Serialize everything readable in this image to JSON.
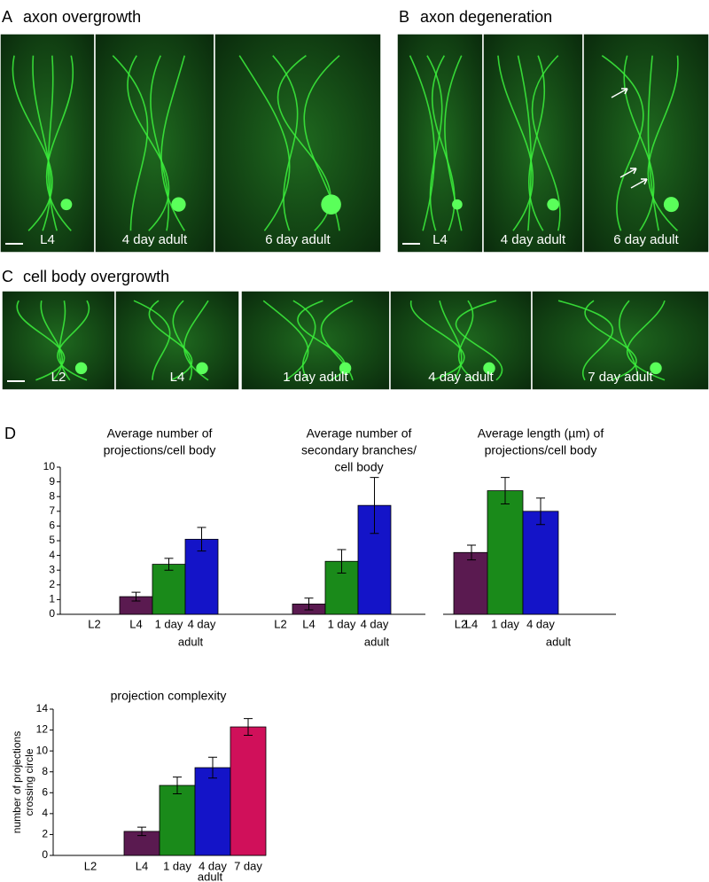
{
  "panels": [
    {
      "letter": "A",
      "title": "axon overgrowth",
      "images": [
        "L4",
        "4 day adult",
        "6 day adult"
      ]
    },
    {
      "letter": "B",
      "title": "axon degeneration",
      "images": [
        "L4",
        "4 day adult",
        "6 day adult"
      ]
    },
    {
      "letter": "C",
      "title": "cell body overgrowth",
      "images": [
        "L2",
        "L4",
        "1 day adult",
        "4 day adult",
        "7 day adult"
      ]
    }
  ],
  "panel_d": "D",
  "chart_data": [
    {
      "type": "bar",
      "title": [
        "Average number of",
        "projections/cell body"
      ],
      "categories": [
        "L2",
        "L4",
        "1 day",
        "4 day"
      ],
      "category_group": "adult",
      "values": [
        null,
        1.2,
        3.4,
        5.1
      ],
      "errors": [
        null,
        0.3,
        0.4,
        0.8
      ],
      "colors": [
        "#5a1a50",
        "#1a8a1a",
        "#1414c8"
      ],
      "ylim": [
        0,
        10
      ],
      "yticks": [
        0,
        1,
        2,
        3,
        4,
        5,
        6,
        7,
        8,
        9,
        10
      ]
    },
    {
      "type": "bar",
      "title": [
        "Average number of",
        "secondary branches/",
        "cell body"
      ],
      "categories": [
        "L2",
        "L4",
        "1 day",
        "4 day"
      ],
      "category_group": "adult",
      "values": [
        null,
        0.7,
        3.6,
        7.4
      ],
      "errors": [
        null,
        0.4,
        0.8,
        1.9
      ],
      "colors": [
        "#5a1a50",
        "#1a8a1a",
        "#1414c8"
      ],
      "ylim": [
        0,
        10
      ]
    },
    {
      "type": "bar",
      "title": [
        "Average length (µm) of",
        "projections/cell body"
      ],
      "categories": [
        "L2",
        "L4",
        "1 day",
        "4 day"
      ],
      "category_group": "adult",
      "values": [
        null,
        4.2,
        8.4,
        7.0
      ],
      "errors": [
        null,
        0.5,
        0.9,
        0.9
      ],
      "colors": [
        "#5a1a50",
        "#1a8a1a",
        "#1414c8"
      ],
      "ylim": [
        0,
        10
      ]
    },
    {
      "type": "bar",
      "title": [
        "projection complexity"
      ],
      "ylabel": [
        "number of projections",
        "crossing circle"
      ],
      "categories": [
        "L2",
        "L4",
        "1 day",
        "4 day",
        "7 day"
      ],
      "category_group": "adult",
      "values": [
        null,
        2.3,
        6.7,
        8.4,
        12.3
      ],
      "errors": [
        null,
        0.4,
        0.8,
        1.0,
        0.8
      ],
      "colors": [
        "#5a1a50",
        "#1a8a1a",
        "#1414c8",
        "#d0105a"
      ],
      "ylim": [
        0,
        14
      ],
      "yticks": [
        0,
        2,
        4,
        6,
        8,
        10,
        12,
        14
      ]
    }
  ]
}
